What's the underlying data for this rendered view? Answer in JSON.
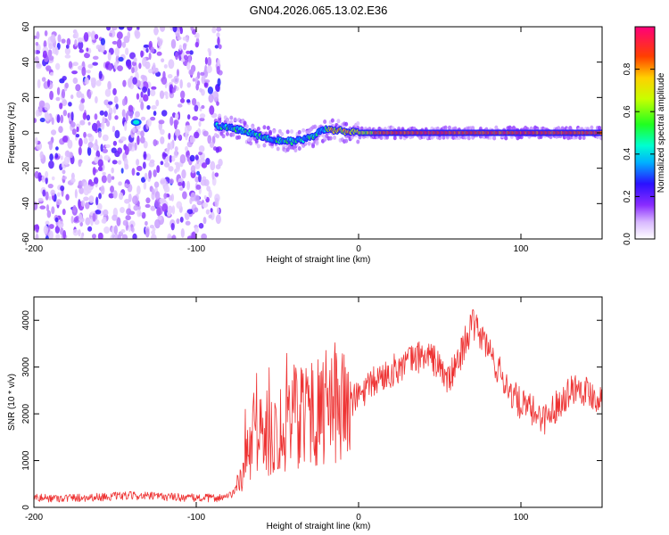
{
  "chart_data": [
    {
      "type": "heatmap",
      "title": "GN04.2026.065.13.02.E36",
      "xlabel": "Height of straight line (km)",
      "ylabel": "Frequency (Hz)",
      "xlim": [
        -200,
        150
      ],
      "ylim": [
        -60,
        60
      ],
      "xticks": [
        -200,
        -100,
        0,
        100
      ],
      "yticks": [
        -60,
        -40,
        -20,
        0,
        20,
        40,
        60
      ],
      "colorbar": {
        "label": "Normalized spectral amplitude",
        "range": [
          0.0,
          1.0
        ],
        "ticks": [
          0.0,
          0.2,
          0.4,
          0.6,
          0.8
        ]
      },
      "ridge": [
        {
          "x": -140,
          "y": 6
        },
        {
          "x": -88,
          "y": 4
        },
        {
          "x": -80,
          "y": 3
        },
        {
          "x": -70,
          "y": 1
        },
        {
          "x": -60,
          "y": -2
        },
        {
          "x": -50,
          "y": -4
        },
        {
          "x": -40,
          "y": -5
        },
        {
          "x": -30,
          "y": -3
        },
        {
          "x": -25,
          "y": 0
        },
        {
          "x": -20,
          "y": 2
        },
        {
          "x": -10,
          "y": 1
        },
        {
          "x": 0,
          "y": 0
        },
        {
          "x": 50,
          "y": 0
        },
        {
          "x": 100,
          "y": 0
        },
        {
          "x": 150,
          "y": 0
        }
      ]
    },
    {
      "type": "line",
      "xlabel": "Height of straight line (km)",
      "ylabel": "SNR (10 * v/v)",
      "xlim": [
        -200,
        150
      ],
      "ylim": [
        0,
        4500
      ],
      "xticks": [
        -200,
        -100,
        0,
        100
      ],
      "yticks": [
        0,
        1000,
        2000,
        3000,
        4000
      ],
      "color": "#ee3333",
      "series": [
        {
          "name": "SNR",
          "x": [
            -200,
            -180,
            -160,
            -140,
            -120,
            -100,
            -90,
            -80,
            -75,
            -70,
            -65,
            -60,
            -55,
            -50,
            -45,
            -40,
            -35,
            -30,
            -25,
            -20,
            -15,
            -10,
            -5,
            0,
            5,
            10,
            15,
            20,
            25,
            30,
            35,
            40,
            45,
            50,
            55,
            60,
            65,
            70,
            75,
            80,
            85,
            90,
            95,
            100,
            105,
            110,
            115,
            120,
            125,
            130,
            135,
            140,
            145,
            150
          ],
          "y": [
            200,
            200,
            220,
            250,
            230,
            200,
            200,
            220,
            400,
            900,
            1400,
            1700,
            1500,
            1700,
            1800,
            1900,
            2200,
            2100,
            2000,
            2100,
            2200,
            2300,
            2200,
            2400,
            2500,
            2700,
            2800,
            2900,
            3000,
            3100,
            3200,
            3250,
            3200,
            3000,
            2700,
            3000,
            3500,
            3900,
            3700,
            3400,
            3000,
            2700,
            2400,
            2200,
            2100,
            2000,
            1900,
            2100,
            2300,
            2500,
            2600,
            2500,
            2400,
            2300
          ]
        }
      ]
    }
  ]
}
